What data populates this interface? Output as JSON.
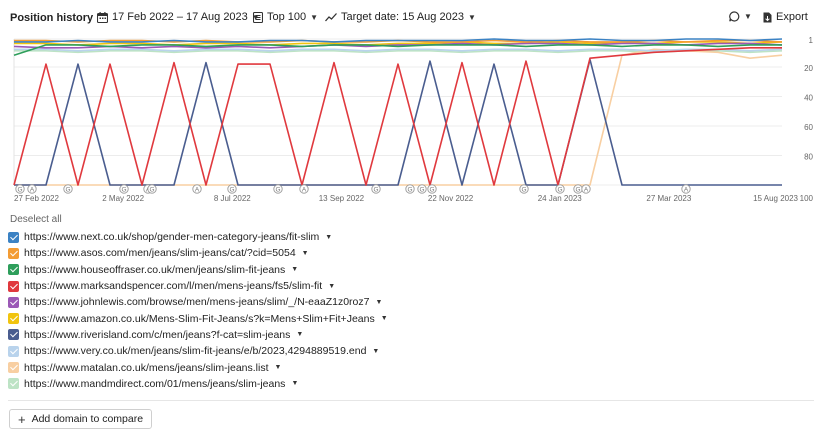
{
  "header": {
    "title": "Position history",
    "date_range": "17 Feb 2022 – 17 Aug 2023",
    "top_filter": "Top 100",
    "target_date": "Target date: 15 Aug 2023",
    "export_label": "Export"
  },
  "chart_data": {
    "type": "line",
    "x_tick_labels": [
      "27 Feb 2022",
      "2 May 2022",
      "8 Jul 2022",
      "13 Sep 2022",
      "22 Nov 2022",
      "24 Jan 2023",
      "27 Mar 2023",
      "15 Aug 2023"
    ],
    "y_tick_labels": [
      "1",
      "20",
      "40",
      "60",
      "80",
      "100"
    ],
    "ylim": [
      100,
      1
    ],
    "y_scale": "inverted",
    "grid": "horizontal",
    "event_markers": [
      "G",
      "A",
      "G",
      "G",
      "A",
      "G",
      "A",
      "G",
      "G",
      "A",
      "G",
      "G",
      "G",
      "G",
      "G",
      "G",
      "G",
      "A",
      "A"
    ],
    "series": [
      {
        "name": "https://www.next.co.uk/shop/gender-men-category-jeans/fit-slim",
        "color": "#3b82c4",
        "values": [
          3,
          3,
          2,
          3,
          3,
          2,
          3,
          3,
          2,
          2,
          3,
          2,
          2,
          2,
          2,
          1,
          2,
          2,
          1,
          2,
          2,
          1,
          1,
          2,
          1
        ]
      },
      {
        "name": "https://www.asos.com/men/jeans/slim-jeans/cat/?cid=5054",
        "color": "#f39c34",
        "values": [
          2,
          2,
          3,
          2,
          2,
          3,
          2,
          3,
          3,
          2,
          3,
          3,
          2,
          3,
          3,
          2,
          3,
          2,
          3,
          3,
          2,
          3,
          2,
          2,
          3
        ]
      },
      {
        "name": "https://www.houseoffraser.co.uk/men/jeans/slim-fit-jeans",
        "color": "#2e9e5b",
        "values": [
          12,
          5,
          5,
          6,
          5,
          5,
          6,
          5,
          5,
          6,
          5,
          5,
          6,
          5,
          5,
          5,
          6,
          5,
          5,
          6,
          5,
          5,
          6,
          5,
          5
        ]
      },
      {
        "name": "https://www.marksandspencer.com/l/men/mens-jeans/fs5/slim-fit",
        "color": "#e0393e",
        "values": [
          100,
          18,
          100,
          18,
          100,
          17,
          100,
          18,
          18,
          100,
          17,
          100,
          18,
          100,
          17,
          100,
          16,
          100,
          14,
          12,
          10,
          9,
          8,
          7,
          7
        ]
      },
      {
        "name": "https://www.johnlewis.com/browse/men/mens-jeans/slim/_/N-eaaZ1z0roz7",
        "color": "#9b59b6",
        "values": [
          6,
          7,
          7,
          6,
          7,
          6,
          7,
          6,
          7,
          6,
          5,
          6,
          5,
          5,
          4,
          5,
          4,
          4,
          5,
          4,
          4,
          5,
          4,
          4,
          5
        ]
      },
      {
        "name": "https://www.amazon.co.uk/Mens-Slim-Fit-Jeans/s?k=Mens+Slim+Fit+Jeans",
        "color": "#f1c40f",
        "values": [
          4,
          4,
          5,
          4,
          4,
          5,
          4,
          4,
          5,
          4,
          4,
          5,
          4,
          4,
          3,
          4,
          4,
          3,
          4,
          3,
          4,
          3,
          3,
          4,
          3
        ]
      },
      {
        "name": "https://www.riverisland.com/c/men/jeans?f-cat=slim-jeans",
        "color": "#4a5d8f",
        "values": [
          100,
          100,
          18,
          100,
          100,
          100,
          17,
          100,
          100,
          100,
          100,
          100,
          100,
          16,
          100,
          18,
          100,
          100,
          15,
          100,
          100,
          100,
          100,
          100,
          100
        ]
      },
      {
        "name": "https://www.very.co.uk/men/jeans/slim-fit-jeans/e/b/2023,4294889519.end",
        "color": "#b9d3ec",
        "values": [
          8,
          8,
          9,
          8,
          8,
          9,
          8,
          8,
          9,
          8,
          8,
          9,
          8,
          8,
          9,
          8,
          8,
          9,
          8,
          8,
          9,
          8,
          8,
          9,
          8
        ]
      },
      {
        "name": "https://www.matalan.co.uk/mens/jeans/slim-jeans.list",
        "color": "#f8cfa2",
        "values": [
          100,
          100,
          100,
          100,
          100,
          100,
          100,
          100,
          100,
          100,
          100,
          100,
          100,
          100,
          100,
          100,
          100,
          100,
          100,
          12,
          8,
          9,
          10,
          14,
          12
        ]
      },
      {
        "name": "https://www.mandmdirect.com/01/mens/jeans/slim-jeans",
        "color": "#bde3c5",
        "values": [
          9,
          9,
          10,
          9,
          9,
          10,
          9,
          9,
          10,
          9,
          9,
          10,
          9,
          9,
          10,
          9,
          9,
          10,
          9,
          9,
          10,
          9,
          9,
          10,
          9
        ]
      }
    ]
  },
  "deselect_label": "Deselect all",
  "add_domain_label": "Add domain to compare"
}
